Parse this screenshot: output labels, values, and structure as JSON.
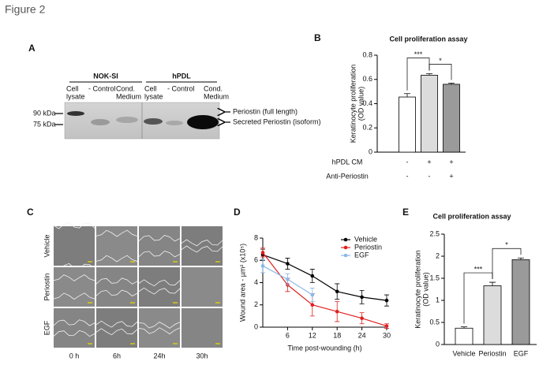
{
  "figure_title": "Figure 2",
  "panels": [
    "A",
    "B",
    "C",
    "D",
    "E"
  ],
  "blot": {
    "groups": [
      {
        "name": "NOK-SI",
        "lanes": [
          [
            "Cell",
            "lysate"
          ],
          [
            "- Control"
          ],
          [
            "Cond.",
            "Medium"
          ]
        ]
      },
      {
        "name": "hPDL",
        "lanes": [
          [
            "Cell",
            "lysate"
          ],
          [
            "- Control"
          ],
          [
            "Cond.",
            "Medium"
          ]
        ]
      }
    ],
    "markers": [
      "90 kDa",
      "75 kDa"
    ],
    "bands": [
      "Periostin (full length)",
      "Secreted Periostin (isoform)"
    ]
  },
  "scratch": {
    "rows": [
      "Vehicle",
      "Periostin",
      "EGF"
    ],
    "columns": [
      "0 h",
      "6h",
      "24h",
      "30h"
    ]
  },
  "chart_data": [
    {
      "type": "bar",
      "title": "Cell proliferation assay",
      "ylabel": [
        "Keratinocyte proliferation",
        "(OD value)"
      ],
      "values": [
        0.455,
        0.635,
        0.56
      ],
      "errors": [
        0.028,
        0.012,
        0.01
      ],
      "colors": [
        "#ffffff",
        "#dcdcdc",
        "#9a9a9a"
      ],
      "conditions": [
        {
          "label": "hPDL CM",
          "values": [
            "-",
            "+",
            "+"
          ]
        },
        {
          "label": "Anti-Periostin",
          "values": [
            "-",
            "-",
            "+"
          ]
        }
      ],
      "significance": [
        "***",
        "*"
      ],
      "ylim": [
        0,
        0.8
      ],
      "yticks": [
        0,
        0.2,
        0.4,
        0.6,
        0.8
      ]
    },
    {
      "type": "line",
      "xlabel": "Time post-wounding (h)",
      "ylabel": "Wound area - µm² (x10⁵)",
      "x": [
        0,
        6,
        12,
        18,
        24,
        30
      ],
      "series": [
        {
          "name": "Vehicle",
          "color": "#000000",
          "values": [
            6.5,
            5.7,
            4.6,
            3.2,
            2.7,
            2.4
          ],
          "errors": [
            0.5,
            0.5,
            0.6,
            0.7,
            0.6,
            0.5
          ]
        },
        {
          "name": "Periostin",
          "color": "#e02020",
          "values": [
            6.7,
            3.8,
            2.0,
            1.4,
            0.8,
            0.1
          ],
          "errors": [
            0.4,
            0.6,
            1.0,
            0.9,
            0.5,
            0.2
          ]
        },
        {
          "name": "EGF",
          "color": "#8ab8e8",
          "values": [
            5.5,
            4.3,
            2.9,
            null,
            null,
            null
          ],
          "errors": [
            0.6,
            0.5,
            0.6,
            null,
            null,
            null
          ]
        }
      ],
      "legend": "top-right",
      "xlim": [
        0,
        30
      ],
      "xticks": [
        6,
        12,
        18,
        24,
        30
      ],
      "ylim": [
        0,
        8
      ],
      "yticks": [
        0,
        2,
        4,
        6,
        8
      ]
    },
    {
      "type": "bar",
      "title": "Cell proliferation assay",
      "ylabel": [
        "Keratinocyte proliferation",
        "(OD value)"
      ],
      "categories": [
        "Vehicle",
        "Periostin",
        "EGF"
      ],
      "values": [
        0.37,
        1.33,
        1.92
      ],
      "errors": [
        0.03,
        0.08,
        0.04
      ],
      "colors": [
        "#ffffff",
        "#dcdcdc",
        "#9a9a9a"
      ],
      "significance": [
        "***",
        "*"
      ],
      "ylim": [
        0,
        2.5
      ],
      "yticks": [
        0,
        0.5,
        1,
        1.5,
        2,
        2.5
      ]
    }
  ]
}
